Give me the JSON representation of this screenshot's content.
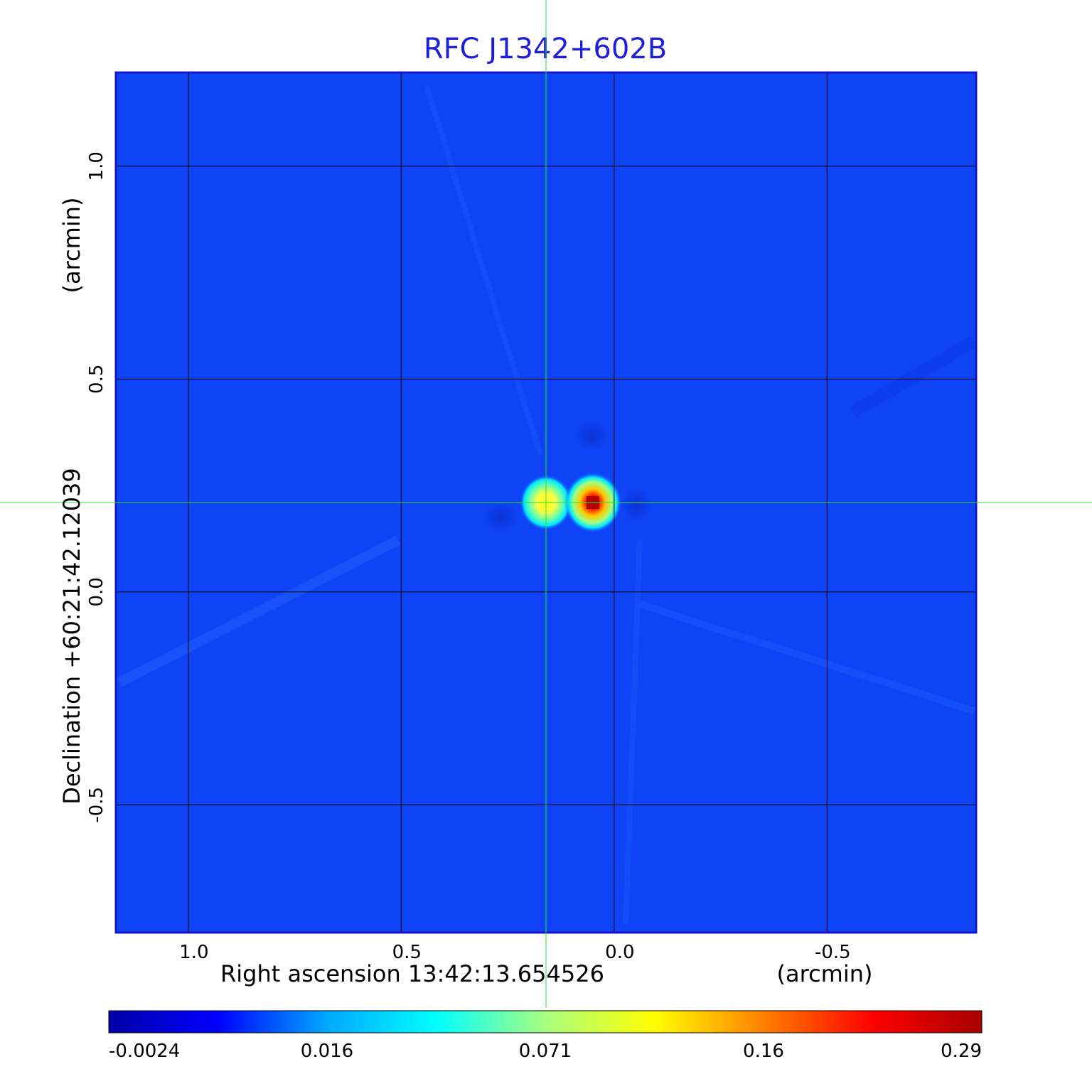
{
  "chart_data": {
    "type": "heatmap",
    "title": "RFC J1342+602B",
    "xlabel": "Right ascension  13:42:13.654526",
    "xunit": "(arcmin)",
    "ylabel": "Declination  +60:21:42.12039",
    "yunit": "(arcmin)",
    "xlim": [
      1.17,
      -0.85
    ],
    "ylim": [
      -0.8,
      1.22
    ],
    "x_ticks": [
      1.0,
      0.5,
      0.0,
      -0.5
    ],
    "x_tick_labels": [
      "1.0",
      "0.5",
      "0.0",
      "-0.5"
    ],
    "y_ticks": [
      1.0,
      0.5,
      0.0,
      -0.5
    ],
    "y_tick_labels": [
      "1.0",
      "0.5",
      "0.0",
      "-0.5"
    ],
    "grid": true,
    "crosshair": {
      "x": 0.16,
      "y": 0.21,
      "color": "#33dd33"
    },
    "background_level": -0.0024,
    "sources": [
      {
        "x": 0.16,
        "y": 0.21,
        "peak": 0.12
      },
      {
        "x": 0.05,
        "y": 0.21,
        "peak": 0.29
      }
    ],
    "colorbar": {
      "labels": [
        "-0.0024",
        "0.016",
        "0.071",
        "0.16",
        "0.29"
      ],
      "colors": [
        "#0000a8",
        "#0000ff",
        "#00a8ff",
        "#00ffff",
        "#a8ff80",
        "#ffff00",
        "#ff8000",
        "#ff0000",
        "#a80000"
      ]
    }
  }
}
